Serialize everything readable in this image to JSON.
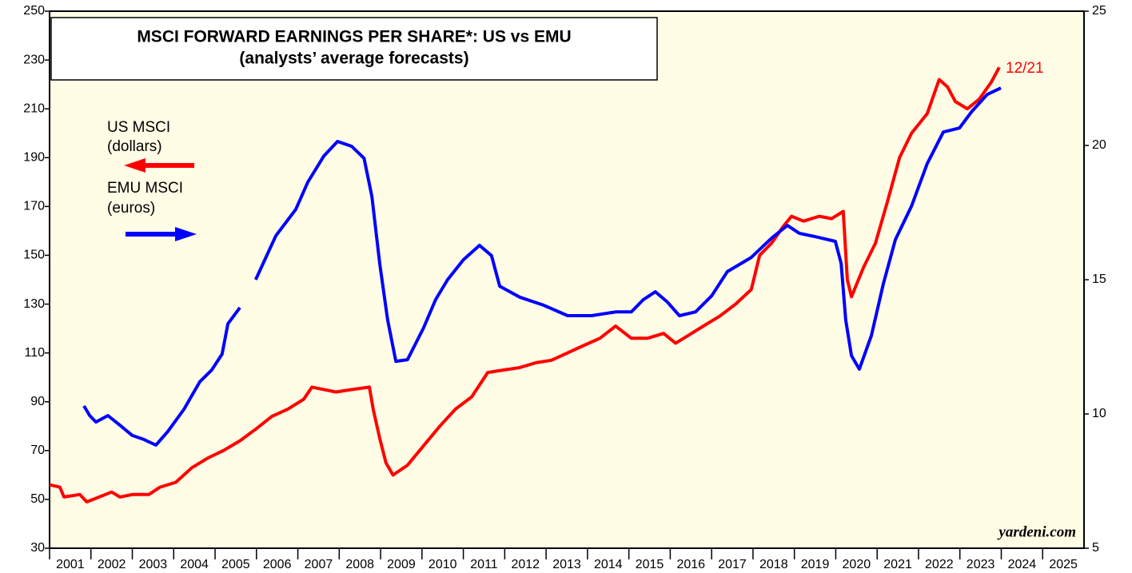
{
  "chart_data": {
    "type": "line",
    "title": "MSCI FORWARD EARNINGS PER SHARE*: US vs EMU",
    "subtitle": "(analysts’ average forecasts)",
    "annotation": "12/21",
    "watermark": "yardeni.com",
    "xlim": [
      2001,
      2026
    ],
    "xticks": [
      2001,
      2002,
      2003,
      2004,
      2005,
      2006,
      2007,
      2008,
      2009,
      2010,
      2011,
      2012,
      2013,
      2014,
      2015,
      2016,
      2017,
      2018,
      2019,
      2020,
      2021,
      2022,
      2023,
      2024,
      2025
    ],
    "ylim": [
      30,
      250
    ],
    "yticks": [
      30,
      50,
      70,
      90,
      110,
      130,
      150,
      170,
      190,
      210,
      230,
      250
    ],
    "y2lim": [
      5,
      25
    ],
    "y2ticks": [
      5,
      10,
      15,
      20,
      25
    ],
    "series": [
      {
        "name": "US MSCI",
        "unit_label": "(dollars)",
        "color": "#ff0000",
        "axis": "y",
        "x": [
          2001.0,
          2001.25,
          2001.35,
          2001.73,
          2001.9,
          2002.2,
          2002.5,
          2002.7,
          2003.0,
          2003.4,
          2003.67,
          2004.05,
          2004.44,
          2004.83,
          2005.2,
          2005.6,
          2006.0,
          2006.37,
          2006.76,
          2007.14,
          2007.34,
          2007.92,
          2008.3,
          2008.73,
          2008.82,
          2008.98,
          2009.13,
          2009.3,
          2009.65,
          2010.04,
          2010.43,
          2010.81,
          2011.2,
          2011.59,
          2011.97,
          2012.36,
          2012.75,
          2013.13,
          2013.52,
          2013.9,
          2014.3,
          2014.68,
          2015.06,
          2015.45,
          2015.84,
          2016.13,
          2016.42,
          2016.8,
          2017.19,
          2017.58,
          2017.96,
          2018.16,
          2018.45,
          2018.74,
          2018.93,
          2019.22,
          2019.6,
          2019.9,
          2020.18,
          2020.28,
          2020.38,
          2020.67,
          2020.96,
          2021.25,
          2021.54,
          2021.83,
          2022.21,
          2022.5,
          2022.7,
          2022.89,
          2023.18,
          2023.47,
          2023.76,
          2023.95
        ],
        "values": [
          56,
          55,
          51,
          52,
          49,
          51,
          53,
          51,
          52,
          52,
          55,
          57,
          63,
          67,
          70,
          74,
          79,
          84,
          87,
          91,
          96,
          94,
          95,
          96,
          87,
          75,
          65,
          60,
          64,
          72,
          80,
          87,
          92,
          102,
          103,
          104,
          106,
          107,
          110,
          113,
          116,
          121,
          116,
          116,
          118,
          114,
          117,
          121,
          125,
          130,
          136,
          150,
          155,
          162,
          166,
          164,
          166,
          165,
          168,
          140,
          133,
          145,
          155,
          172,
          190,
          200,
          208,
          222,
          219,
          213,
          210,
          214,
          221,
          227
        ]
      },
      {
        "name": "EMU MSCI",
        "unit_label": "(euros)",
        "color": "#0000ff",
        "axis": "y2",
        "x": [
          2001.83,
          2001.97,
          2002.12,
          2002.41,
          2002.7,
          2003.0,
          2003.28,
          2003.57,
          2003.86,
          2004.25,
          2004.63,
          2004.92,
          2005.17,
          2005.31,
          2005.6,
          2005.85,
          2005.98,
          2006.47,
          2006.95,
          2007.24,
          2007.63,
          2007.96,
          2008.3,
          2008.6,
          2008.79,
          2008.98,
          2009.17,
          2009.37,
          2009.65,
          2010.04,
          2010.33,
          2010.62,
          2011.0,
          2011.39,
          2011.68,
          2011.88,
          2012.36,
          2012.94,
          2013.52,
          2014.1,
          2014.68,
          2015.06,
          2015.35,
          2015.64,
          2015.93,
          2016.22,
          2016.61,
          2017.0,
          2017.38,
          2017.96,
          2018.45,
          2018.83,
          2019.12,
          2019.51,
          2019.99,
          2020.13,
          2020.24,
          2020.38,
          2020.57,
          2020.86,
          2021.15,
          2021.44,
          2021.83,
          2022.21,
          2022.6,
          2022.99,
          2023.28,
          2023.66,
          2023.99
        ],
        "values": [
          10.3,
          9.94,
          9.7,
          9.94,
          9.58,
          9.2,
          9.05,
          8.84,
          9.35,
          10.18,
          11.2,
          11.64,
          12.23,
          13.36,
          13.96,
          null,
          15.0,
          16.64,
          17.62,
          18.63,
          19.61,
          20.15,
          19.97,
          19.52,
          18.1,
          15.6,
          13.5,
          11.96,
          12.02,
          13.21,
          14.26,
          15.0,
          15.74,
          16.28,
          15.9,
          14.76,
          14.35,
          14.05,
          13.66,
          13.66,
          13.8,
          13.8,
          14.26,
          14.55,
          14.17,
          13.66,
          13.8,
          14.4,
          15.3,
          15.83,
          16.55,
          17.02,
          16.73,
          16.6,
          16.43,
          15.6,
          13.5,
          12.17,
          11.67,
          12.92,
          14.85,
          16.49,
          17.74,
          19.32,
          20.5,
          20.65,
          21.25,
          21.9,
          22.14
        ]
      }
    ]
  }
}
